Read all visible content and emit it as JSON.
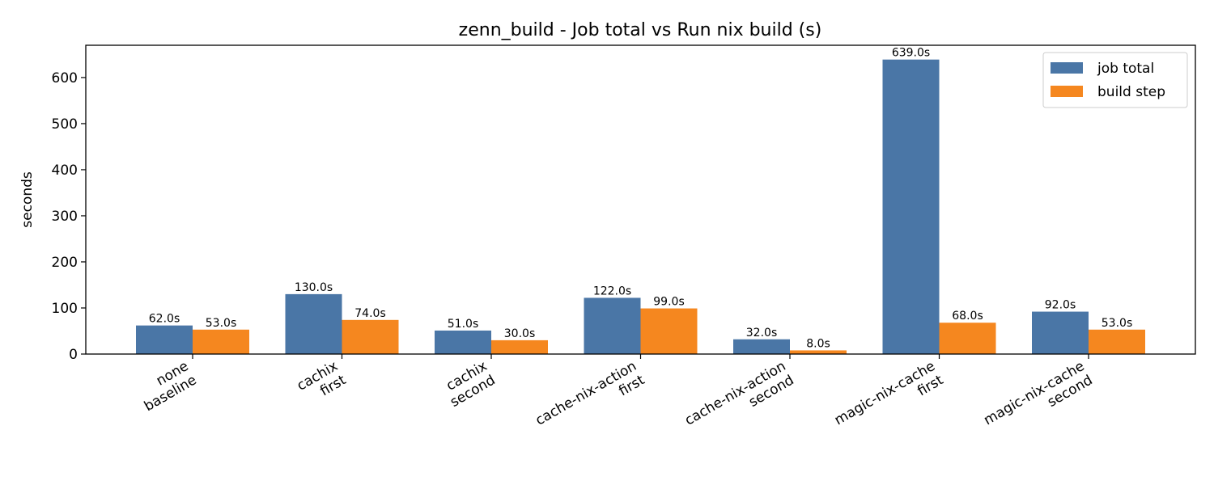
{
  "chart_data": {
    "type": "bar",
    "title": "zenn_build - Job total vs Run nix build (s)",
    "xlabel": "",
    "ylabel": "seconds",
    "ylim": [
      0,
      670
    ],
    "yticks": [
      0,
      100,
      200,
      300,
      400,
      500,
      600
    ],
    "categories": [
      [
        "none",
        "baseline"
      ],
      [
        "cachix",
        "first"
      ],
      [
        "cachix",
        "second"
      ],
      [
        "cache-nix-action",
        "first"
      ],
      [
        "cache-nix-action",
        "second"
      ],
      [
        "magic-nix-cache",
        "first"
      ],
      [
        "magic-nix-cache",
        "second"
      ]
    ],
    "series": [
      {
        "name": "job total",
        "color": "#4a76a6",
        "values": [
          62.0,
          130.0,
          51.0,
          122.0,
          32.0,
          639.0,
          92.0
        ],
        "labels": [
          "62.0s",
          "130.0s",
          "51.0s",
          "122.0s",
          "32.0s",
          "639.0s",
          "92.0s"
        ]
      },
      {
        "name": "build step",
        "color": "#f5871f",
        "values": [
          53.0,
          74.0,
          30.0,
          99.0,
          8.0,
          68.0,
          53.0
        ],
        "labels": [
          "53.0s",
          "74.0s",
          "30.0s",
          "99.0s",
          "8.0s",
          "68.0s",
          "53.0s"
        ]
      }
    ],
    "grid": false,
    "legend_position": "top-right"
  }
}
